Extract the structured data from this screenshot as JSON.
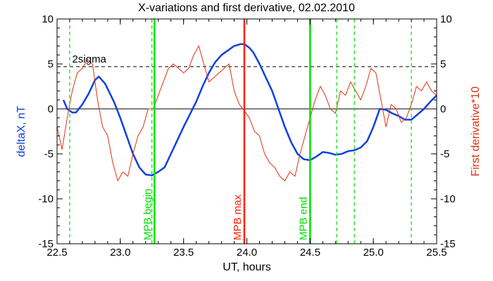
{
  "chart_data": {
    "type": "line",
    "title": "X-variations and first derivative, 02.02.2010",
    "xlabel": "UT, hours",
    "ylabel_left": "deltaX, nT",
    "ylabel_right": "First derivative*10",
    "xlim": [
      22.5,
      25.5
    ],
    "ylim": [
      -15,
      10
    ],
    "x_ticks": [
      "22.5",
      "23.0",
      "23.5",
      "24.0",
      "24.5",
      "25.0",
      "25.5"
    ],
    "y_ticks": [
      "10",
      "5",
      "0",
      "-5",
      "-10",
      "-15"
    ],
    "threshold": {
      "label": "2sigma",
      "value": 4.7,
      "style": "dashed"
    },
    "vertical_markers": [
      {
        "label": "MPB begin",
        "x": 23.27,
        "style": "solid",
        "color": "#00e000"
      },
      {
        "label": "MPB max",
        "x": 23.98,
        "style": "solid",
        "color": "#ff2000"
      },
      {
        "label": "MPB end",
        "x": 24.5,
        "style": "solid",
        "color": "#00e000"
      }
    ],
    "dashed_markers": [
      {
        "x": 22.6,
        "color": "#00e000"
      },
      {
        "x": 23.25,
        "color": "#00e000"
      },
      {
        "x": 24.71,
        "color": "#00e000"
      },
      {
        "x": 24.85,
        "color": "#00e000"
      },
      {
        "x": 25.3,
        "color": "#00e000"
      }
    ],
    "series": [
      {
        "color": "#1040e0",
        "axis": "left",
        "x": [
          22.55,
          22.58,
          22.62,
          22.65,
          22.7,
          22.75,
          22.8,
          22.83,
          22.88,
          22.95,
          23.0,
          23.05,
          23.1,
          23.15,
          23.2,
          23.25,
          23.3,
          23.35,
          23.4,
          23.45,
          23.5,
          23.55,
          23.6,
          23.65,
          23.7,
          23.75,
          23.8,
          23.85,
          23.9,
          23.95,
          23.98,
          24.02,
          24.05,
          24.1,
          24.15,
          24.2,
          24.25,
          24.3,
          24.35,
          24.4,
          24.45,
          24.5,
          24.55,
          24.6,
          24.65,
          24.7,
          24.75,
          24.8,
          24.85,
          24.9,
          24.95,
          25.0,
          25.05,
          25.1,
          25.15,
          25.2,
          25.25,
          25.3,
          25.35,
          25.4,
          25.45,
          25.5
        ],
        "values": [
          1.0,
          0.0,
          -0.4,
          -0.4,
          0.5,
          1.7,
          3.2,
          3.6,
          2.8,
          0.8,
          -1.0,
          -3.0,
          -5.0,
          -6.5,
          -7.3,
          -7.4,
          -7.0,
          -6.5,
          -5.0,
          -3.5,
          -2.0,
          -0.6,
          0.8,
          2.5,
          4.0,
          5.2,
          6.0,
          6.5,
          7.0,
          7.2,
          7.2,
          6.8,
          6.3,
          5.0,
          3.5,
          2.0,
          0.0,
          -2.0,
          -3.7,
          -5.0,
          -5.6,
          -5.7,
          -5.3,
          -4.8,
          -4.9,
          -5.1,
          -5.0,
          -4.7,
          -4.6,
          -4.3,
          -3.6,
          -2.0,
          0.0,
          -0.1,
          -0.5,
          -0.8,
          -1.2,
          -1.2,
          -0.6,
          0.0,
          0.8,
          1.5
        ]
      },
      {
        "color": "#e03010",
        "axis": "right",
        "x": [
          22.5,
          22.54,
          22.58,
          22.62,
          22.66,
          22.7,
          22.74,
          22.78,
          22.82,
          22.86,
          22.9,
          22.94,
          22.98,
          23.02,
          23.06,
          23.1,
          23.14,
          23.18,
          23.22,
          23.26,
          23.3,
          23.34,
          23.38,
          23.42,
          23.46,
          23.5,
          23.54,
          23.58,
          23.62,
          23.66,
          23.7,
          23.74,
          23.78,
          23.82,
          23.86,
          23.9,
          23.94,
          23.98,
          24.02,
          24.06,
          24.1,
          24.14,
          24.18,
          24.22,
          24.26,
          24.3,
          24.34,
          24.38,
          24.42,
          24.46,
          24.5,
          24.54,
          24.58,
          24.62,
          24.66,
          24.7,
          24.74,
          24.78,
          24.82,
          24.86,
          24.9,
          24.94,
          24.98,
          25.02,
          25.06,
          25.1,
          25.14,
          25.18,
          25.22,
          25.26,
          25.3,
          25.34,
          25.38,
          25.42,
          25.46,
          25.5
        ],
        "values": [
          -2.0,
          -4.5,
          -1.0,
          2.0,
          4.0,
          4.5,
          5.5,
          5.0,
          1.0,
          -2.0,
          -3.0,
          -6.0,
          -8.0,
          -7.0,
          -7.5,
          -5.0,
          -3.0,
          -2.0,
          0.0,
          0.0,
          1.5,
          3.0,
          4.5,
          5.0,
          4.5,
          4.0,
          4.5,
          6.0,
          7.0,
          5.0,
          3.0,
          3.5,
          4.0,
          4.5,
          5.0,
          2.0,
          0.5,
          -0.2,
          -1.0,
          -2.5,
          -3.0,
          -5.0,
          -6.0,
          -6.5,
          -7.5,
          -8.0,
          -7.0,
          -7.5,
          -5.0,
          -3.0,
          -1.0,
          1.0,
          2.5,
          1.5,
          0.0,
          -0.5,
          2.0,
          1.5,
          3.0,
          2.0,
          1.0,
          2.5,
          4.5,
          4.0,
          1.0,
          -2.0,
          0.5,
          0.0,
          -1.5,
          -1.0,
          0.5,
          2.5,
          2.0,
          3.0,
          2.0,
          1.5
        ]
      }
    ]
  }
}
